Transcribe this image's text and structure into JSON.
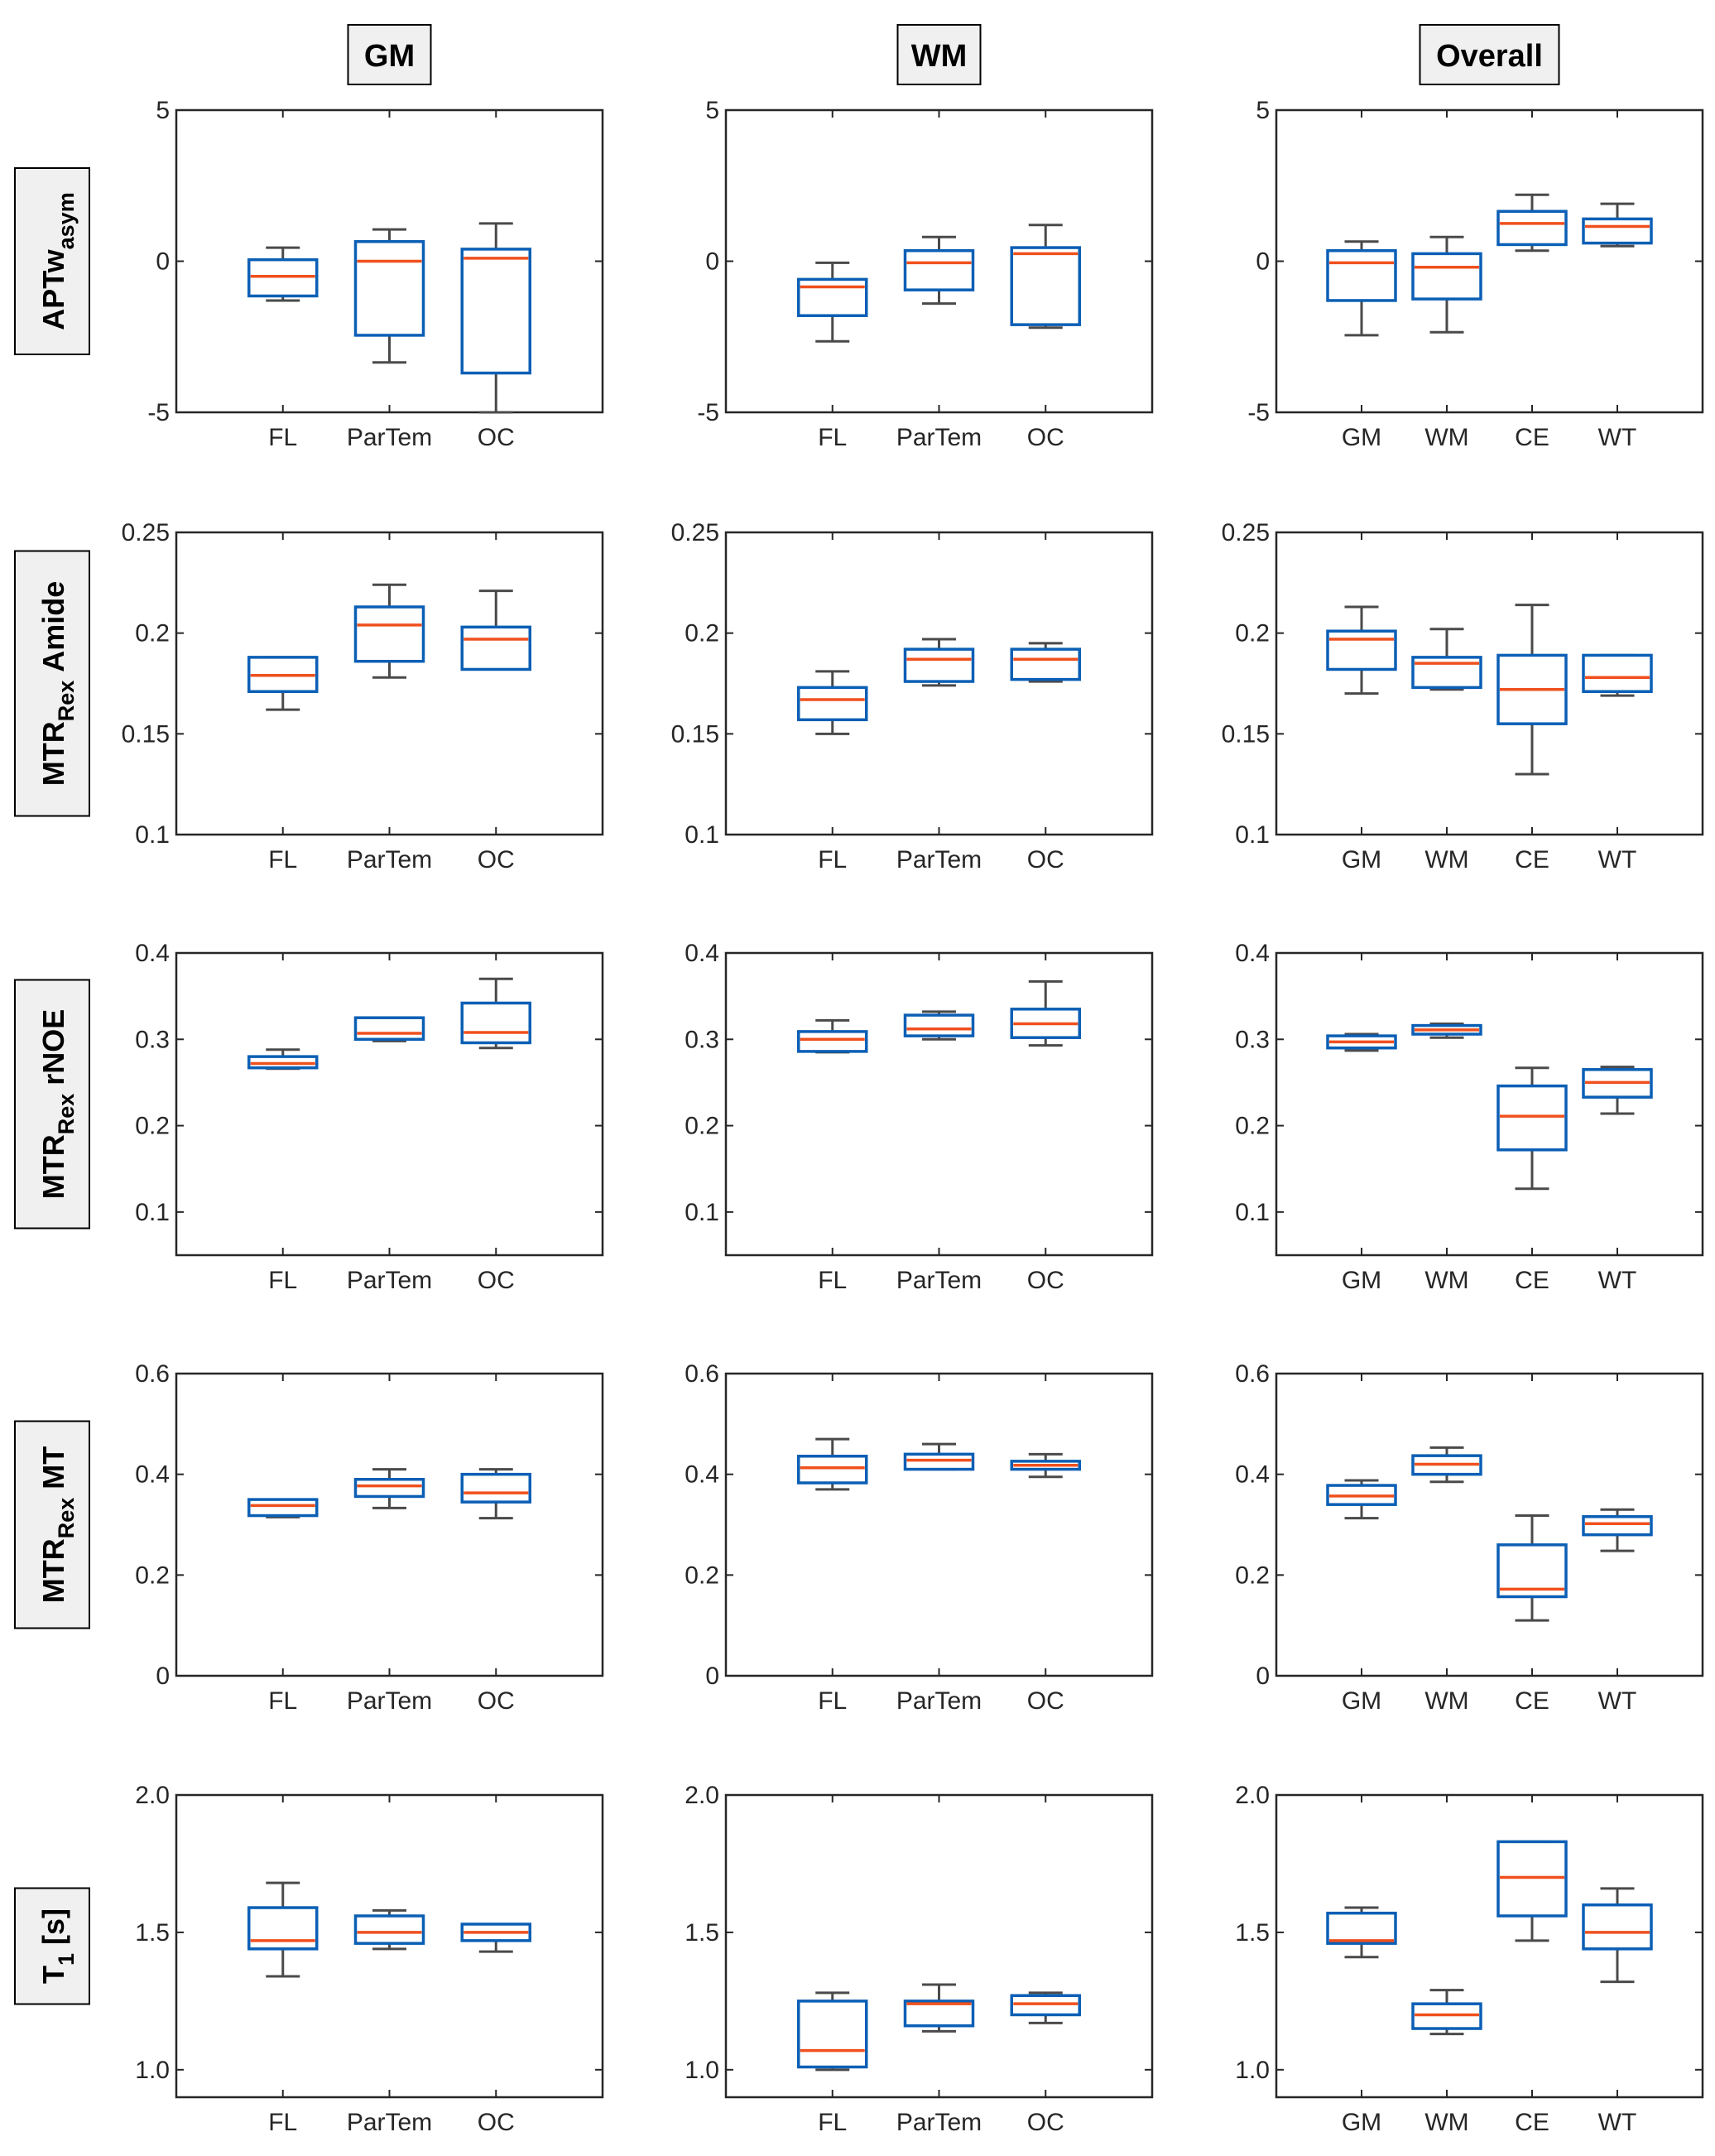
{
  "headers": [
    "GM",
    "WM",
    "Overall"
  ],
  "row_labels": [
    {
      "main": "APTw",
      "sub": "asym",
      "tail": ""
    },
    {
      "main": "MTR",
      "sub": "Rex",
      "tail": "Amide"
    },
    {
      "main": "MTR",
      "sub": "Rex",
      "tail": "rNOE"
    },
    {
      "main": "MTR",
      "sub": "Rex",
      "tail": "MT"
    },
    {
      "main": "T",
      "sub": "1",
      "tail": "[s]"
    }
  ],
  "colors": {
    "box": "#0b5fb5",
    "median": "#f0501e",
    "whisker": "#4a4a4a",
    "axis": "#262626"
  },
  "chart_data": [
    {
      "type": "box",
      "row": 0,
      "col": 0,
      "categories": [
        "FL",
        "ParTem",
        "OC"
      ],
      "ylim": [
        -5,
        5
      ],
      "yticks": [
        -5,
        0,
        5
      ],
      "ytick_labels": [
        "-5",
        "0",
        "5"
      ],
      "boxes": [
        {
          "min": -1.3,
          "q1": -1.15,
          "median": -0.5,
          "q3": 0.05,
          "max": 0.45
        },
        {
          "min": -3.35,
          "q1": -2.45,
          "median": 0.0,
          "q3": 0.65,
          "max": 1.05
        },
        {
          "min": -5.0,
          "q1": -3.7,
          "median": 0.1,
          "q3": 0.4,
          "max": 1.25
        }
      ]
    },
    {
      "type": "box",
      "row": 0,
      "col": 1,
      "categories": [
        "FL",
        "ParTem",
        "OC"
      ],
      "ylim": [
        -5,
        5
      ],
      "yticks": [
        -5,
        0,
        5
      ],
      "ytick_labels": [
        "-5",
        "0",
        "5"
      ],
      "boxes": [
        {
          "min": -2.65,
          "q1": -1.8,
          "median": -0.85,
          "q3": -0.6,
          "max": -0.05
        },
        {
          "min": -1.4,
          "q1": -0.95,
          "median": -0.05,
          "q3": 0.35,
          "max": 0.8
        },
        {
          "min": -2.2,
          "q1": -2.1,
          "median": 0.25,
          "q3": 0.45,
          "max": 1.2
        }
      ]
    },
    {
      "type": "box",
      "row": 0,
      "col": 2,
      "categories": [
        "GM",
        "WM",
        "CE",
        "WT"
      ],
      "ylim": [
        -5,
        5
      ],
      "yticks": [
        -5,
        0,
        5
      ],
      "ytick_labels": [
        "-5",
        "0",
        "5"
      ],
      "boxes": [
        {
          "min": -2.45,
          "q1": -1.3,
          "median": -0.05,
          "q3": 0.35,
          "max": 0.65
        },
        {
          "min": -2.35,
          "q1": -1.25,
          "median": -0.2,
          "q3": 0.25,
          "max": 0.8
        },
        {
          "min": 0.35,
          "q1": 0.55,
          "median": 1.25,
          "q3": 1.65,
          "max": 2.2
        },
        {
          "min": 0.5,
          "q1": 0.6,
          "median": 1.15,
          "q3": 1.4,
          "max": 1.9
        }
      ]
    },
    {
      "type": "box",
      "row": 1,
      "col": 0,
      "categories": [
        "FL",
        "ParTem",
        "OC"
      ],
      "ylim": [
        0.1,
        0.25
      ],
      "yticks": [
        0.1,
        0.15,
        0.2,
        0.25
      ],
      "ytick_labels": [
        "0.1",
        "0.15",
        "0.2",
        "0.25"
      ],
      "boxes": [
        {
          "min": 0.162,
          "q1": 0.171,
          "median": 0.179,
          "q3": 0.188,
          "max": 0.188
        },
        {
          "min": 0.178,
          "q1": 0.186,
          "median": 0.204,
          "q3": 0.213,
          "max": 0.224
        },
        {
          "min": 0.182,
          "q1": 0.182,
          "median": 0.197,
          "q3": 0.203,
          "max": 0.221
        }
      ]
    },
    {
      "type": "box",
      "row": 1,
      "col": 1,
      "categories": [
        "FL",
        "ParTem",
        "OC"
      ],
      "ylim": [
        0.1,
        0.25
      ],
      "yticks": [
        0.1,
        0.15,
        0.2,
        0.25
      ],
      "ytick_labels": [
        "0.1",
        "0.15",
        "0.2",
        "0.25"
      ],
      "boxes": [
        {
          "min": 0.15,
          "q1": 0.157,
          "median": 0.167,
          "q3": 0.173,
          "max": 0.181
        },
        {
          "min": 0.174,
          "q1": 0.176,
          "median": 0.187,
          "q3": 0.192,
          "max": 0.197
        },
        {
          "min": 0.176,
          "q1": 0.177,
          "median": 0.187,
          "q3": 0.192,
          "max": 0.195
        }
      ]
    },
    {
      "type": "box",
      "row": 1,
      "col": 2,
      "categories": [
        "GM",
        "WM",
        "CE",
        "WT"
      ],
      "ylim": [
        0.1,
        0.25
      ],
      "yticks": [
        0.1,
        0.15,
        0.2,
        0.25
      ],
      "ytick_labels": [
        "0.1",
        "0.15",
        "0.2",
        "0.25"
      ],
      "boxes": [
        {
          "min": 0.17,
          "q1": 0.182,
          "median": 0.197,
          "q3": 0.201,
          "max": 0.213
        },
        {
          "min": 0.172,
          "q1": 0.173,
          "median": 0.185,
          "q3": 0.188,
          "max": 0.202
        },
        {
          "min": 0.13,
          "q1": 0.155,
          "median": 0.172,
          "q3": 0.189,
          "max": 0.214
        },
        {
          "min": 0.169,
          "q1": 0.171,
          "median": 0.178,
          "q3": 0.189,
          "max": 0.189
        }
      ]
    },
    {
      "type": "box",
      "row": 2,
      "col": 0,
      "categories": [
        "FL",
        "ParTem",
        "OC"
      ],
      "ylim": [
        0.05,
        0.4
      ],
      "yticks": [
        0.1,
        0.2,
        0.3,
        0.4
      ],
      "ytick_labels": [
        "0.1",
        "0.2",
        "0.3",
        "0.4"
      ],
      "boxes": [
        {
          "min": 0.266,
          "q1": 0.267,
          "median": 0.272,
          "q3": 0.28,
          "max": 0.288
        },
        {
          "min": 0.298,
          "q1": 0.3,
          "median": 0.307,
          "q3": 0.325,
          "max": 0.325
        },
        {
          "min": 0.29,
          "q1": 0.296,
          "median": 0.308,
          "q3": 0.342,
          "max": 0.37
        }
      ]
    },
    {
      "type": "box",
      "row": 2,
      "col": 1,
      "categories": [
        "FL",
        "ParTem",
        "OC"
      ],
      "ylim": [
        0.05,
        0.4
      ],
      "yticks": [
        0.1,
        0.2,
        0.3,
        0.4
      ],
      "ytick_labels": [
        "0.1",
        "0.2",
        "0.3",
        "0.4"
      ],
      "boxes": [
        {
          "min": 0.285,
          "q1": 0.286,
          "median": 0.3,
          "q3": 0.309,
          "max": 0.322
        },
        {
          "min": 0.3,
          "q1": 0.304,
          "median": 0.312,
          "q3": 0.328,
          "max": 0.332
        },
        {
          "min": 0.293,
          "q1": 0.302,
          "median": 0.318,
          "q3": 0.335,
          "max": 0.367
        }
      ]
    },
    {
      "type": "box",
      "row": 2,
      "col": 2,
      "categories": [
        "GM",
        "WM",
        "CE",
        "WT"
      ],
      "ylim": [
        0.05,
        0.4
      ],
      "yticks": [
        0.1,
        0.2,
        0.3,
        0.4
      ],
      "ytick_labels": [
        "0.1",
        "0.2",
        "0.3",
        "0.4"
      ],
      "boxes": [
        {
          "min": 0.287,
          "q1": 0.29,
          "median": 0.297,
          "q3": 0.304,
          "max": 0.306
        },
        {
          "min": 0.302,
          "q1": 0.306,
          "median": 0.311,
          "q3": 0.316,
          "max": 0.318
        },
        {
          "min": 0.127,
          "q1": 0.172,
          "median": 0.211,
          "q3": 0.246,
          "max": 0.267
        },
        {
          "min": 0.214,
          "q1": 0.233,
          "median": 0.25,
          "q3": 0.265,
          "max": 0.268
        }
      ]
    },
    {
      "type": "box",
      "row": 3,
      "col": 0,
      "categories": [
        "FL",
        "ParTem",
        "OC"
      ],
      "ylim": [
        0,
        0.6
      ],
      "yticks": [
        0,
        0.2,
        0.4,
        0.6
      ],
      "ytick_labels": [
        "0",
        "0.2",
        "0.4",
        "0.6"
      ],
      "boxes": [
        {
          "min": 0.315,
          "q1": 0.318,
          "median": 0.338,
          "q3": 0.35,
          "max": 0.35
        },
        {
          "min": 0.333,
          "q1": 0.356,
          "median": 0.377,
          "q3": 0.39,
          "max": 0.41
        },
        {
          "min": 0.313,
          "q1": 0.345,
          "median": 0.363,
          "q3": 0.4,
          "max": 0.41
        }
      ]
    },
    {
      "type": "box",
      "row": 3,
      "col": 1,
      "categories": [
        "FL",
        "ParTem",
        "OC"
      ],
      "ylim": [
        0,
        0.6
      ],
      "yticks": [
        0,
        0.2,
        0.4,
        0.6
      ],
      "ytick_labels": [
        "0",
        "0.2",
        "0.4",
        "0.6"
      ],
      "boxes": [
        {
          "min": 0.37,
          "q1": 0.383,
          "median": 0.413,
          "q3": 0.436,
          "max": 0.47
        },
        {
          "min": 0.41,
          "q1": 0.41,
          "median": 0.428,
          "q3": 0.44,
          "max": 0.46
        },
        {
          "min": 0.395,
          "q1": 0.41,
          "median": 0.418,
          "q3": 0.426,
          "max": 0.44
        }
      ]
    },
    {
      "type": "box",
      "row": 3,
      "col": 2,
      "categories": [
        "GM",
        "WM",
        "CE",
        "WT"
      ],
      "ylim": [
        0,
        0.6
      ],
      "yticks": [
        0,
        0.2,
        0.4,
        0.6
      ],
      "ytick_labels": [
        "0",
        "0.2",
        "0.4",
        "0.6"
      ],
      "boxes": [
        {
          "min": 0.313,
          "q1": 0.34,
          "median": 0.357,
          "q3": 0.378,
          "max": 0.388
        },
        {
          "min": 0.385,
          "q1": 0.4,
          "median": 0.42,
          "q3": 0.437,
          "max": 0.453
        },
        {
          "min": 0.11,
          "q1": 0.157,
          "median": 0.172,
          "q3": 0.26,
          "max": 0.318
        },
        {
          "min": 0.248,
          "q1": 0.28,
          "median": 0.302,
          "q3": 0.316,
          "max": 0.33
        }
      ]
    },
    {
      "type": "box",
      "row": 4,
      "col": 0,
      "categories": [
        "FL",
        "ParTem",
        "OC"
      ],
      "ylim": [
        0.9,
        2.0
      ],
      "yticks": [
        1.0,
        1.5,
        2.0
      ],
      "ytick_labels": [
        "1.0",
        "1.5",
        "2.0"
      ],
      "boxes": [
        {
          "min": 1.34,
          "q1": 1.44,
          "median": 1.47,
          "q3": 1.59,
          "max": 1.68
        },
        {
          "min": 1.44,
          "q1": 1.46,
          "median": 1.5,
          "q3": 1.56,
          "max": 1.58
        },
        {
          "min": 1.43,
          "q1": 1.47,
          "median": 1.5,
          "q3": 1.53,
          "max": 1.53
        }
      ]
    },
    {
      "type": "box",
      "row": 4,
      "col": 1,
      "categories": [
        "FL",
        "ParTem",
        "OC"
      ],
      "ylim": [
        0.9,
        2.0
      ],
      "yticks": [
        1.0,
        1.5,
        2.0
      ],
      "ytick_labels": [
        "1.0",
        "1.5",
        "2.0"
      ],
      "boxes": [
        {
          "min": 1.0,
          "q1": 1.01,
          "median": 1.07,
          "q3": 1.25,
          "max": 1.28
        },
        {
          "min": 1.14,
          "q1": 1.16,
          "median": 1.24,
          "q3": 1.25,
          "max": 1.31
        },
        {
          "min": 1.17,
          "q1": 1.2,
          "median": 1.24,
          "q3": 1.27,
          "max": 1.28
        }
      ]
    },
    {
      "type": "box",
      "row": 4,
      "col": 2,
      "categories": [
        "GM",
        "WM",
        "CE",
        "WT"
      ],
      "ylim": [
        0.9,
        2.0
      ],
      "yticks": [
        1.0,
        1.5,
        2.0
      ],
      "ytick_labels": [
        "1.0",
        "1.5",
        "2.0"
      ],
      "boxes": [
        {
          "min": 1.41,
          "q1": 1.46,
          "median": 1.47,
          "q3": 1.57,
          "max": 1.59
        },
        {
          "min": 1.13,
          "q1": 1.15,
          "median": 1.2,
          "q3": 1.24,
          "max": 1.29
        },
        {
          "min": 1.47,
          "q1": 1.56,
          "median": 1.7,
          "q3": 1.83,
          "max": 1.83
        },
        {
          "min": 1.32,
          "q1": 1.44,
          "median": 1.5,
          "q3": 1.6,
          "max": 1.66
        }
      ]
    }
  ]
}
